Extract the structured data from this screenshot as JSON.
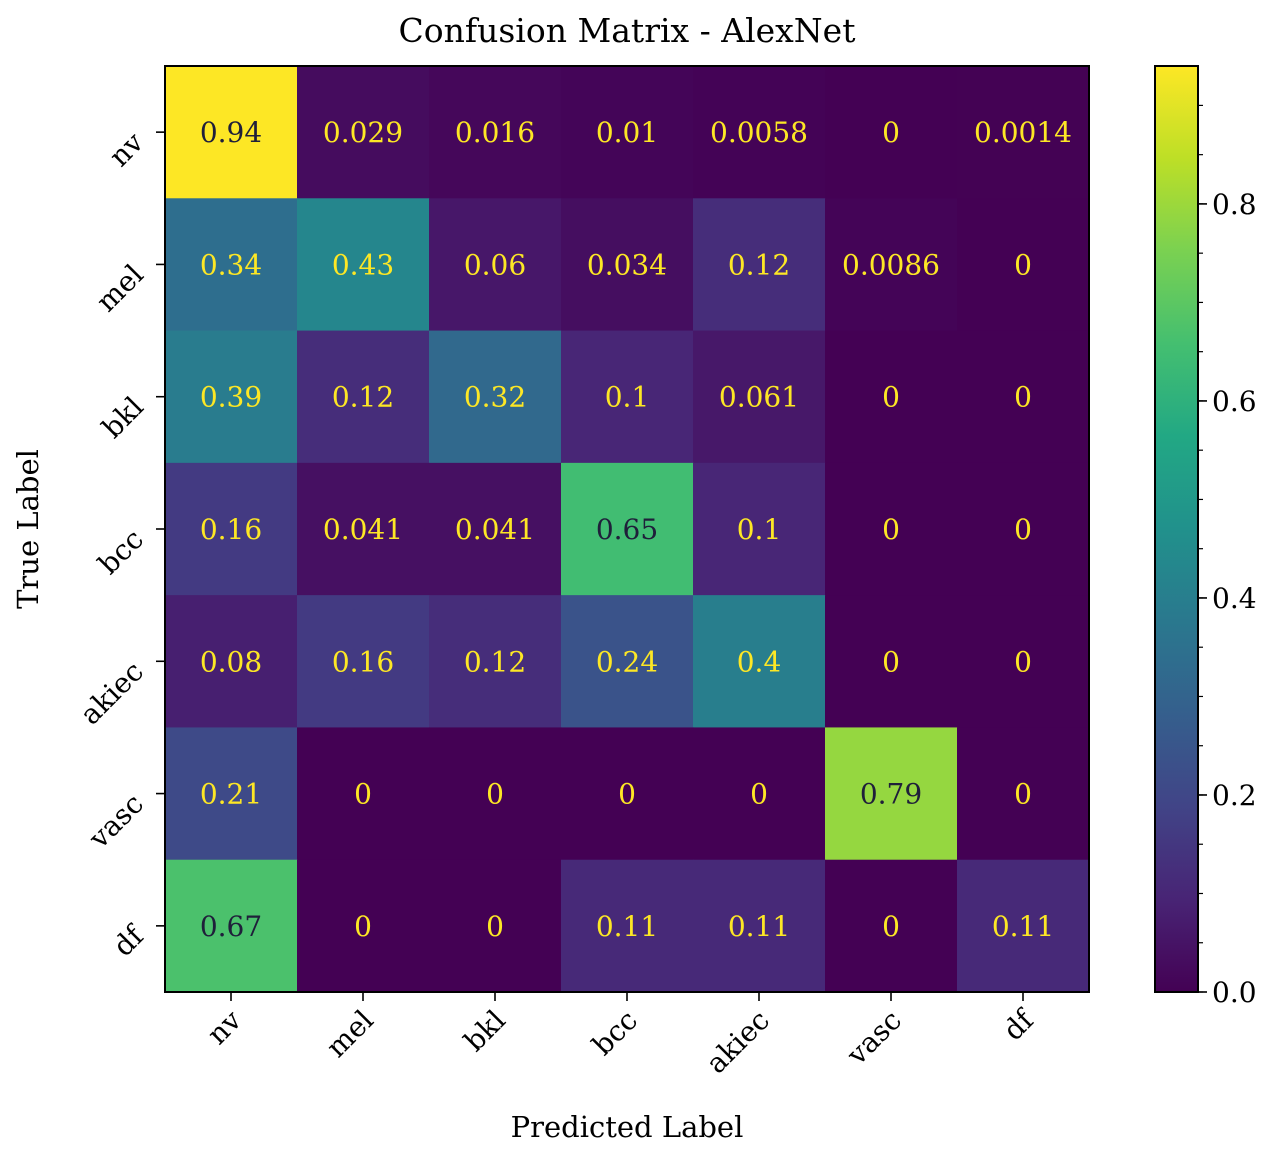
{
  "chart_data": {
    "type": "heatmap",
    "title": "Confusion Matrix - AlexNet",
    "xlabel": "Predicted Label",
    "ylabel": "True Label",
    "x_categories": [
      "nv",
      "mel",
      "bkl",
      "bcc",
      "akiec",
      "vasc",
      "df"
    ],
    "y_categories": [
      "nv",
      "mel",
      "bkl",
      "bcc",
      "akiec",
      "vasc",
      "df"
    ],
    "values": [
      [
        0.94,
        0.029,
        0.016,
        0.01,
        0.0058,
        0,
        0.0014
      ],
      [
        0.34,
        0.43,
        0.06,
        0.034,
        0.12,
        0.0086,
        0
      ],
      [
        0.39,
        0.12,
        0.32,
        0.1,
        0.061,
        0,
        0
      ],
      [
        0.16,
        0.041,
        0.041,
        0.65,
        0.1,
        0,
        0
      ],
      [
        0.08,
        0.16,
        0.12,
        0.24,
        0.4,
        0,
        0
      ],
      [
        0.21,
        0,
        0,
        0,
        0,
        0.79,
        0
      ],
      [
        0.67,
        0,
        0,
        0.11,
        0.11,
        0,
        0.11
      ]
    ],
    "value_labels": [
      [
        "0.94",
        "0.029",
        "0.016",
        "0.01",
        "0.0058",
        "0",
        "0.0014"
      ],
      [
        "0.34",
        "0.43",
        "0.06",
        "0.034",
        "0.12",
        "0.0086",
        "0"
      ],
      [
        "0.39",
        "0.12",
        "0.32",
        "0.1",
        "0.061",
        "0",
        "0"
      ],
      [
        "0.16",
        "0.041",
        "0.041",
        "0.65",
        "0.1",
        "0",
        "0"
      ],
      [
        "0.08",
        "0.16",
        "0.12",
        "0.24",
        "0.4",
        "0",
        "0"
      ],
      [
        "0.21",
        "0",
        "0",
        "0",
        "0",
        "0.79",
        "0"
      ],
      [
        "0.67",
        "0",
        "0",
        "0.11",
        "0.11",
        "0",
        "0.11"
      ]
    ],
    "colormap": "viridis",
    "colorbar": {
      "range": [
        0.0,
        0.94
      ],
      "ticks": [
        0.0,
        0.2,
        0.4,
        0.6,
        0.8
      ],
      "tick_labels": [
        "0.0",
        "0.2",
        "0.4",
        "0.6",
        "0.8"
      ]
    },
    "tick_rotation": "45 degrees",
    "text_colors": {
      "light": "#fde725",
      "dark": "#1f1f3a"
    }
  }
}
